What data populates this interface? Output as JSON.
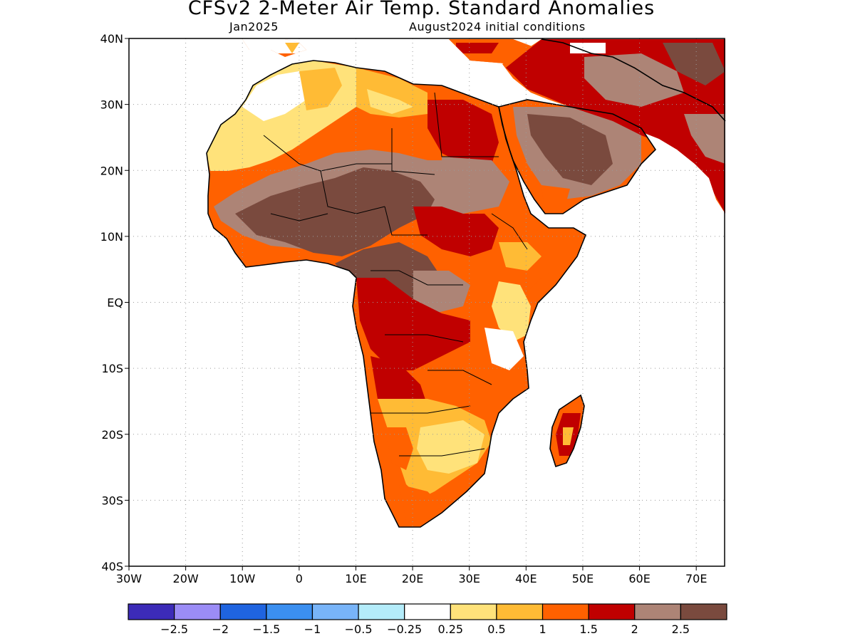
{
  "header": {
    "title": "CFSv2 2-Meter Air Temp. Standard Anomalies",
    "target_month": "Jan2025",
    "initial_conditions": "August2024 initial conditions"
  },
  "map": {
    "lon_range": [
      -30,
      75
    ],
    "lat_range": [
      -40,
      40
    ],
    "lat_labels": [
      {
        "lat": 40,
        "label": "40N"
      },
      {
        "lat": 30,
        "label": "30N"
      },
      {
        "lat": 20,
        "label": "20N"
      },
      {
        "lat": 10,
        "label": "10N"
      },
      {
        "lat": 0,
        "label": "EQ"
      },
      {
        "lat": -10,
        "label": "10S"
      },
      {
        "lat": -20,
        "label": "20S"
      },
      {
        "lat": -30,
        "label": "30S"
      },
      {
        "lat": -40,
        "label": "40S"
      }
    ],
    "lon_labels": [
      {
        "lon": -30,
        "label": "30W"
      },
      {
        "lon": -20,
        "label": "20W"
      },
      {
        "lon": -10,
        "label": "10W"
      },
      {
        "lon": 0,
        "label": "0"
      },
      {
        "lon": 10,
        "label": "10E"
      },
      {
        "lon": 20,
        "label": "20E"
      },
      {
        "lon": 30,
        "label": "30E"
      },
      {
        "lon": 40,
        "label": "40E"
      },
      {
        "lon": 50,
        "label": "50E"
      },
      {
        "lon": 60,
        "label": "60E"
      },
      {
        "lon": 70,
        "label": "70E"
      }
    ],
    "grid_lines": "dotted",
    "ocean_color": "#ffffff",
    "coastline_color": "#000000"
  },
  "colorbar": {
    "colors": [
      "#3c2bb8",
      "#9b8cf6",
      "#1f64e0",
      "#3b8ff0",
      "#78b4f8",
      "#b4ecfa",
      "#ffffff",
      "#ffe27a",
      "#ffbb35",
      "#ff6100",
      "#c00000",
      "#ad8476",
      "#7a4a3e"
    ],
    "labels": [
      "-2.5",
      "-2",
      "-1.5",
      "-1",
      "-0.5",
      "-0.25",
      "0.25",
      "0.5",
      "1",
      "1.5",
      "2",
      "2.5"
    ]
  }
}
